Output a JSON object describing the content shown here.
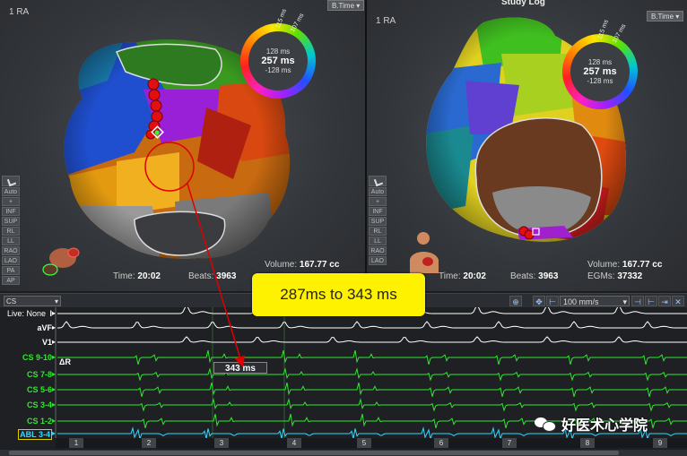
{
  "left_view": {
    "tag": "1 RA",
    "mode_dropdown": "B.Time",
    "toolbar": [
      "Auto",
      "INF",
      "SUP",
      "RL",
      "LL",
      "RAO",
      "LAO",
      "PA",
      "AP"
    ],
    "ring": {
      "top": "128 ms",
      "center": "257 ms",
      "bottom": "-128 ms",
      "tick_a": "115 ms",
      "tick_b": "107 ms"
    },
    "time_label": "Time:",
    "time_value": "20:02",
    "beats_label": "Beats:",
    "beats_value": "3963",
    "volume_label": "Volume:",
    "volume_value": "167.77 cc"
  },
  "right_view": {
    "title": "Study Log",
    "tag": "1 RA",
    "mode_dropdown": "B.Time",
    "toolbar": [
      "Auto",
      "INF",
      "SUP",
      "RL",
      "LL",
      "RAO",
      "LAO"
    ],
    "ring": {
      "top": "128 ms",
      "center": "257 ms",
      "bottom": "-128 ms",
      "tick_a": "115 ms",
      "tick_b": "107 ms"
    },
    "time_label": "Time:",
    "time_value": "20:02",
    "beats_label": "Beats:",
    "beats_value": "3963",
    "volume_label": "Volume:",
    "volume_value": "167.77 cc",
    "egms_label": "EGMs:",
    "egms_value": "37332"
  },
  "callout": "287ms to 343 ms",
  "ecg": {
    "group_select": "CS",
    "live_label": "Live: None",
    "speed": "100 mm/s",
    "leads": [
      "I",
      "aVF",
      "V1",
      "CS 9-10",
      "CS 7-8",
      "CS 5-6",
      "CS 3-4",
      "CS 1-2",
      "ABL 3-4"
    ],
    "delta_label": "ΔR",
    "measurement": "343 ms",
    "beats": [
      "1",
      "2",
      "3",
      "4",
      "5",
      "6",
      "7",
      "8",
      "9"
    ]
  },
  "watermark": "好医术心学院",
  "colors": {
    "annotation_red": "#e00000",
    "callout_yellow": "#fff200",
    "cs_green": "#2ee82e",
    "abl_cyan": "#33d8ff"
  }
}
